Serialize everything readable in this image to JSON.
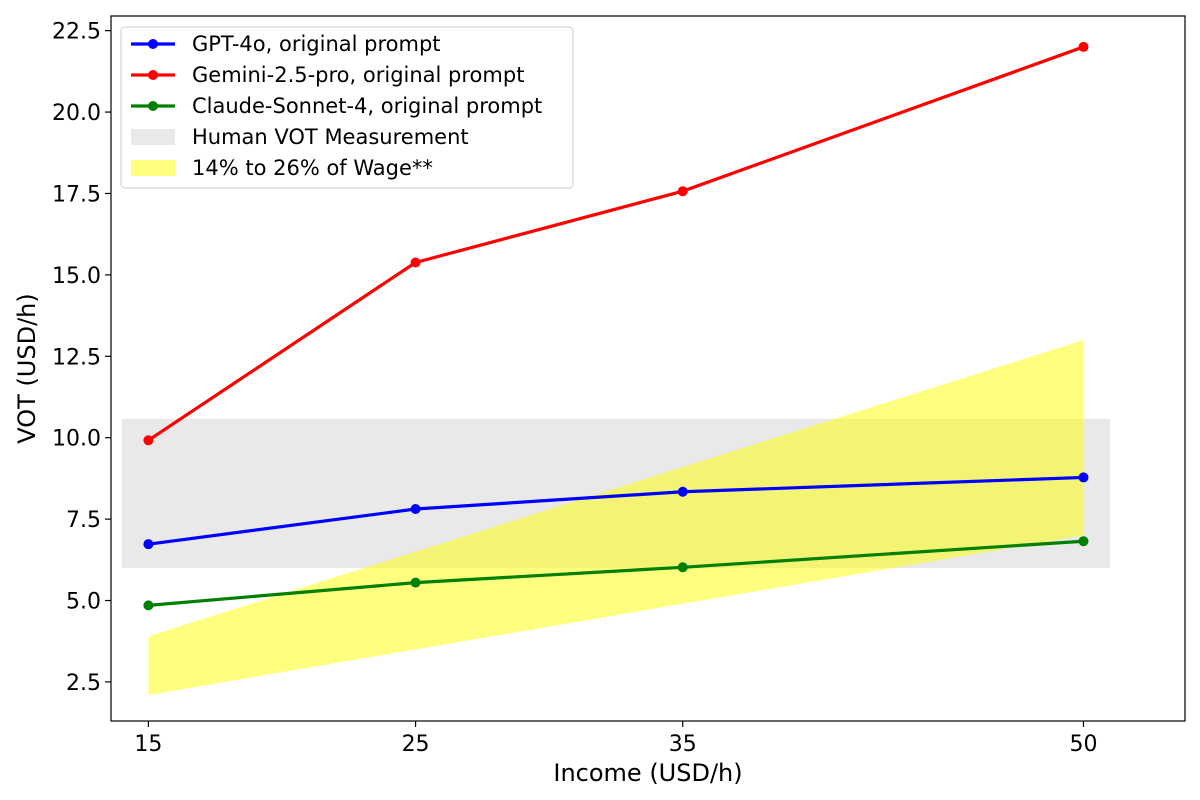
{
  "chart_data": {
    "type": "line",
    "title": "",
    "xlabel": "Income (USD/h)",
    "ylabel": "VOT (USD/h)",
    "x": [
      15,
      25,
      35,
      50
    ],
    "xlim": [
      13.6,
      53.8
    ],
    "ylim": [
      1.3,
      22.95
    ],
    "xticks": [
      15,
      25,
      35,
      50
    ],
    "yticks": [
      2.5,
      5.0,
      7.5,
      10.0,
      12.5,
      15.0,
      17.5,
      20.0,
      22.5
    ],
    "ytick_labels": [
      "2.5",
      "5.0",
      "7.5",
      "10.0",
      "12.5",
      "15.0",
      "17.5",
      "20.0",
      "22.5"
    ],
    "grid": false,
    "legend_position": "top-left",
    "series": [
      {
        "name": "GPT-4o, original prompt",
        "color": "#0000ff",
        "marker": "circle",
        "values": [
          6.73,
          7.81,
          8.34,
          8.78
        ]
      },
      {
        "name": "Gemini-2.5-pro, original prompt",
        "color": "#ff0000",
        "marker": "circle",
        "values": [
          9.92,
          15.38,
          17.57,
          22.0
        ]
      },
      {
        "name": "Claude-Sonnet-4, original prompt",
        "color": "#008000",
        "marker": "circle",
        "values": [
          4.85,
          5.55,
          6.02,
          6.82
        ]
      }
    ],
    "bands": [
      {
        "name": "Human VOT Measurement",
        "color": "#d3d3d3",
        "opacity": 0.5,
        "x_range": [
          14.0,
          51.0
        ],
        "y_range": [
          6.0,
          10.58
        ]
      },
      {
        "name": "14% to 26% of Wage**",
        "color": "#ffff00",
        "opacity": 0.5,
        "x": [
          15,
          50
        ],
        "lower": [
          2.1,
          7.0
        ],
        "upper": [
          3.9,
          13.0
        ]
      }
    ]
  }
}
